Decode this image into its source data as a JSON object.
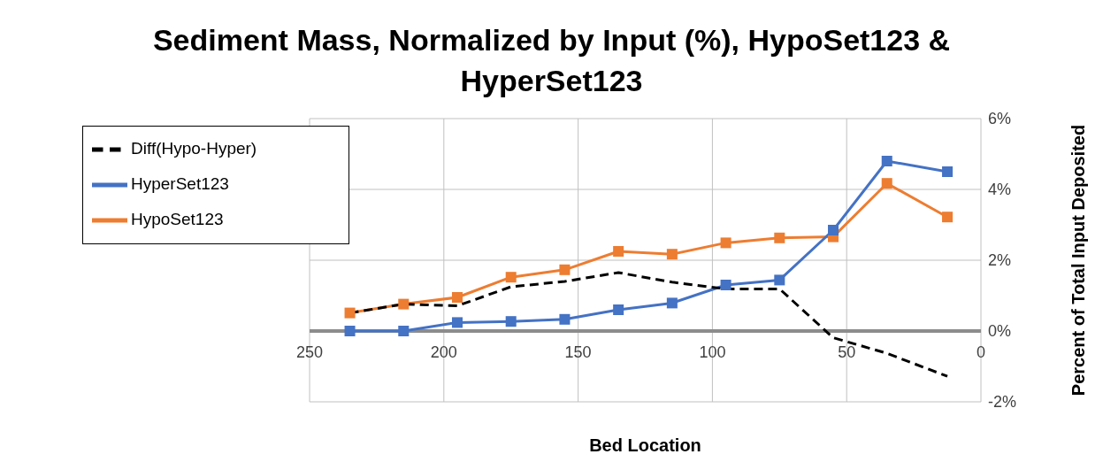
{
  "chart_data": {
    "type": "line",
    "title": "Sediment Mass, Normalized by Input (%), HypoSet123 & HyperSet123",
    "xlabel": "Bed Location",
    "ylabel": "Percent of Total Input Deposited",
    "x": [
      235,
      215,
      195,
      175,
      155,
      135,
      115,
      95,
      75,
      55,
      35,
      12.5
    ],
    "series": [
      {
        "name": "HypoSet123",
        "color": "#ed7d31",
        "marker": "square",
        "values": [
          0.51,
          0.76,
          0.95,
          1.52,
          1.73,
          2.25,
          2.17,
          2.49,
          2.63,
          2.66,
          4.17,
          3.22
        ]
      },
      {
        "name": "HyperSet123",
        "color": "#4472c4",
        "marker": "square",
        "values": [
          0,
          0,
          0.24,
          0.27,
          0.33,
          0.6,
          0.79,
          1.3,
          1.44,
          2.85,
          4.8,
          4.5
        ]
      },
      {
        "name": "Diff(Hypo-Hyper)",
        "color": "#000000",
        "marker": "none",
        "line_style": "dashed",
        "values": [
          0.51,
          0.76,
          0.71,
          1.25,
          1.4,
          1.65,
          1.38,
          1.19,
          1.19,
          -0.19,
          -0.63,
          -1.28
        ]
      }
    ],
    "xlim": [
      250,
      0
    ],
    "xticks": [
      250,
      200,
      150,
      100,
      50,
      0
    ],
    "ylim": [
      -2,
      6
    ],
    "yticks": [
      {
        "value": -2,
        "label": "-2%"
      },
      {
        "value": 0,
        "label": "0%"
      },
      {
        "value": 2,
        "label": "2%"
      },
      {
        "value": 4,
        "label": "4%"
      },
      {
        "value": 6,
        "label": "6%"
      }
    ],
    "grid": true,
    "legend": "top left"
  }
}
